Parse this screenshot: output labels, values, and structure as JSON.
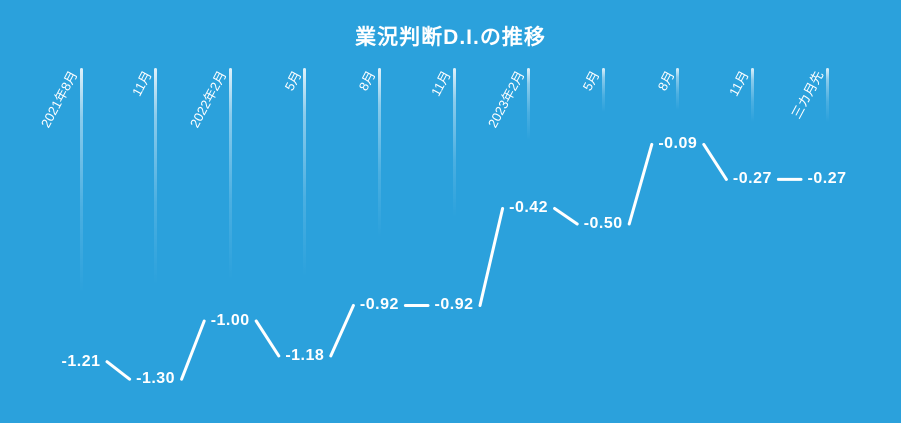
{
  "page": {
    "background_color": "#2BA1DC"
  },
  "chart_data": {
    "type": "line",
    "title": "業況判断D.I.の推移",
    "categories": [
      "2021年8月",
      "11月",
      "2022年2月",
      "5月",
      "8月",
      "11月",
      "2023年2月",
      "5月",
      "8月",
      "11月",
      "三カ月先"
    ],
    "values": [
      -1.21,
      -1.3,
      -1.0,
      -1.18,
      -0.92,
      -0.92,
      -0.42,
      -0.5,
      -0.09,
      -0.27,
      -0.27
    ],
    "data_labels": [
      "-1.21",
      "-1.30",
      "-1.00",
      "-1.18",
      "-0.92",
      "-0.92",
      "-0.42",
      "-0.50",
      "-0.09",
      "-0.27",
      "-0.27"
    ],
    "xlabel": "",
    "ylabel": "",
    "ylim": [
      -1.45,
      0.1
    ],
    "legend": "none",
    "grid": "vertical fading white gridlines, one per category, labels at top rotated 62deg",
    "data_label_position": "centered on data point, replacing markers; line segments bridge between labels",
    "line_color": "#FFFFFF",
    "text_color": "#FFFFFF",
    "background_color": "#2BA1DC"
  }
}
